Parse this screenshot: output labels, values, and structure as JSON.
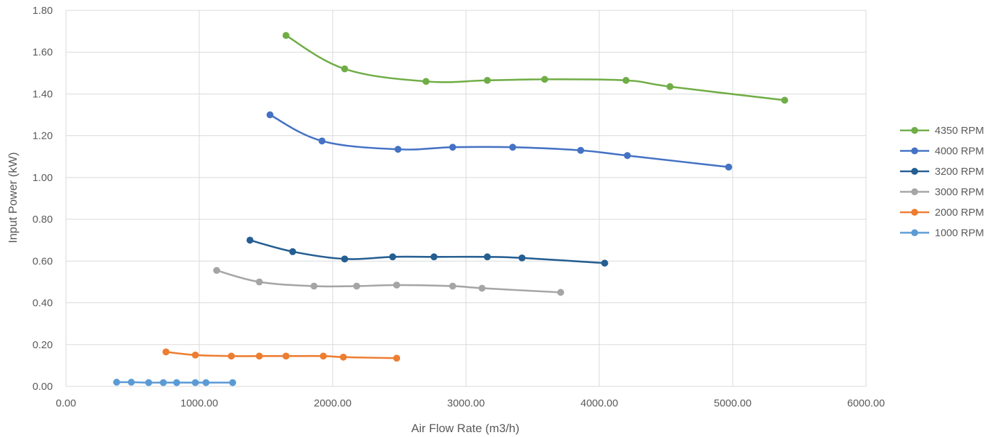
{
  "chart_data": {
    "type": "line",
    "title": "",
    "xlabel": "Air Flow Rate (m3/h)",
    "ylabel": "Input Power (kW)",
    "xlim": [
      0,
      6000
    ],
    "ylim": [
      0,
      1.8
    ],
    "x_ticks": [
      "0.00",
      "1000.00",
      "2000.00",
      "3000.00",
      "4000.00",
      "5000.00",
      "6000.00"
    ],
    "y_ticks": [
      "0.00",
      "0.20",
      "0.40",
      "0.60",
      "0.80",
      "1.00",
      "1.20",
      "1.40",
      "1.60",
      "1.80"
    ],
    "grid": true,
    "smooth": true,
    "legend_position": "right",
    "series": [
      {
        "name": "4350 RPM",
        "color": "#70ad47",
        "points": [
          [
            1650,
            1.68
          ],
          [
            2090,
            1.52
          ],
          [
            2700,
            1.46
          ],
          [
            3160,
            1.465
          ],
          [
            3590,
            1.47
          ],
          [
            4200,
            1.465
          ],
          [
            4530,
            1.435
          ],
          [
            5390,
            1.37
          ]
        ]
      },
      {
        "name": "4000 RPM",
        "color": "#4472c4",
        "points": [
          [
            1530,
            1.3
          ],
          [
            1920,
            1.175
          ],
          [
            2490,
            1.135
          ],
          [
            2900,
            1.145
          ],
          [
            3350,
            1.145
          ],
          [
            3860,
            1.13
          ],
          [
            4210,
            1.105
          ],
          [
            4970,
            1.05
          ]
        ]
      },
      {
        "name": "3200 RPM",
        "color": "#255e91",
        "points": [
          [
            1380,
            0.7
          ],
          [
            1700,
            0.645
          ],
          [
            2090,
            0.61
          ],
          [
            2450,
            0.62
          ],
          [
            2760,
            0.62
          ],
          [
            3160,
            0.62
          ],
          [
            3420,
            0.615
          ],
          [
            4040,
            0.59
          ]
        ]
      },
      {
        "name": "3000 RPM",
        "color": "#a5a5a5",
        "points": [
          [
            1130,
            0.555
          ],
          [
            1450,
            0.5
          ],
          [
            1860,
            0.48
          ],
          [
            2180,
            0.48
          ],
          [
            2480,
            0.485
          ],
          [
            2900,
            0.48
          ],
          [
            3120,
            0.47
          ],
          [
            3710,
            0.45
          ]
        ]
      },
      {
        "name": "2000 RPM",
        "color": "#ed7d31",
        "points": [
          [
            750,
            0.165
          ],
          [
            970,
            0.15
          ],
          [
            1240,
            0.145
          ],
          [
            1450,
            0.145
          ],
          [
            1650,
            0.145
          ],
          [
            1930,
            0.145
          ],
          [
            2080,
            0.14
          ],
          [
            2480,
            0.135
          ]
        ]
      },
      {
        "name": "1000 RPM",
        "color": "#5b9bd5",
        "points": [
          [
            380,
            0.02
          ],
          [
            490,
            0.02
          ],
          [
            620,
            0.018
          ],
          [
            730,
            0.018
          ],
          [
            830,
            0.018
          ],
          [
            970,
            0.018
          ],
          [
            1050,
            0.018
          ],
          [
            1250,
            0.018
          ]
        ]
      }
    ]
  }
}
